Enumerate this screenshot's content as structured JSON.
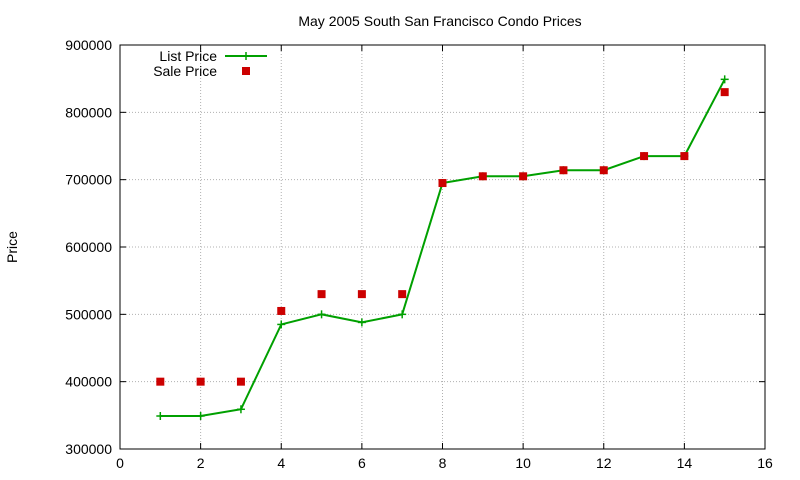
{
  "chart_data": {
    "type": "line",
    "title": "May 2005 South San Francisco Condo Prices",
    "xlabel": "",
    "ylabel": "Price",
    "xlim": [
      0,
      16
    ],
    "ylim": [
      300000,
      900000
    ],
    "x_ticks": [
      0,
      2,
      4,
      6,
      8,
      10,
      12,
      14,
      16
    ],
    "y_ticks": [
      300000,
      400000,
      500000,
      600000,
      700000,
      800000,
      900000
    ],
    "grid": true,
    "legend_position": "top-left",
    "series": [
      {
        "name": "List Price",
        "style": "line-with-plus-markers",
        "color": "#00a000",
        "points": [
          {
            "x": 1,
            "y": 349000
          },
          {
            "x": 2,
            "y": 349000
          },
          {
            "x": 3,
            "y": 359000
          },
          {
            "x": 4,
            "y": 485000
          },
          {
            "x": 5,
            "y": 500000
          },
          {
            "x": 6,
            "y": 488000
          },
          {
            "x": 7,
            "y": 500000
          },
          {
            "x": 8,
            "y": 695000
          },
          {
            "x": 9,
            "y": 705000
          },
          {
            "x": 10,
            "y": 705000
          },
          {
            "x": 11,
            "y": 714000
          },
          {
            "x": 12,
            "y": 714000
          },
          {
            "x": 13,
            "y": 735000
          },
          {
            "x": 14,
            "y": 735000
          },
          {
            "x": 15,
            "y": 849000
          }
        ]
      },
      {
        "name": "Sale Price",
        "style": "square-markers",
        "color": "#cc0000",
        "points": [
          {
            "x": 1,
            "y": 400000
          },
          {
            "x": 2,
            "y": 400000
          },
          {
            "x": 3,
            "y": 400000
          },
          {
            "x": 4,
            "y": 505000
          },
          {
            "x": 5,
            "y": 530000
          },
          {
            "x": 6,
            "y": 530000
          },
          {
            "x": 7,
            "y": 530000
          },
          {
            "x": 8,
            "y": 695000
          },
          {
            "x": 9,
            "y": 705000
          },
          {
            "x": 10,
            "y": 705000
          },
          {
            "x": 11,
            "y": 714000
          },
          {
            "x": 12,
            "y": 714000
          },
          {
            "x": 13,
            "y": 735000
          },
          {
            "x": 14,
            "y": 735000
          },
          {
            "x": 15,
            "y": 830000
          }
        ]
      }
    ]
  }
}
